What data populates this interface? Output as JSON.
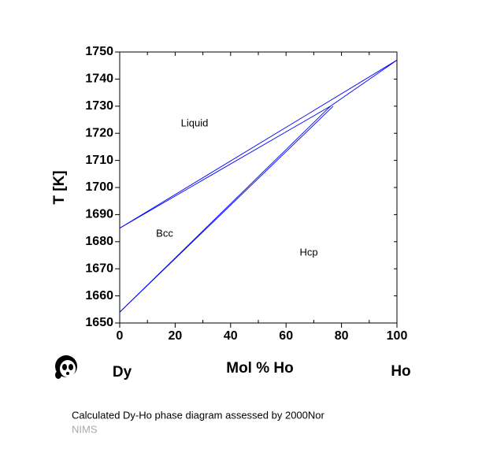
{
  "chart_data": {
    "type": "line",
    "y_label": "T [K]",
    "x_label": "Mol % Ho",
    "left_element": "Dy",
    "right_element": "Ho",
    "annotations": [
      "Liquid",
      "Bcc",
      "Hcp"
    ],
    "caption": "Calculated Dy-Ho phase diagram assessed by 2000Nor",
    "source": "NIMS",
    "xlim": [
      0,
      100
    ],
    "ylim": [
      1650,
      1750
    ],
    "xticks": [
      0,
      20,
      40,
      60,
      80,
      100
    ],
    "yticks": [
      1650,
      1660,
      1670,
      1680,
      1690,
      1700,
      1710,
      1720,
      1730,
      1740,
      1750
    ],
    "series": [
      {
        "color": "#0000ff",
        "x": [
          0,
          100
        ],
        "values": [
          1685,
          1747
        ]
      },
      {
        "color": "#0000ff",
        "x": [
          0,
          76,
          100
        ],
        "values": [
          1685,
          1730,
          1747
        ]
      },
      {
        "color": "#0000ff",
        "x": [
          0,
          76
        ],
        "values": [
          1654,
          1730
        ]
      },
      {
        "color": "#0000ff",
        "x": [
          0,
          77
        ],
        "values": [
          1654,
          1730
        ]
      }
    ]
  }
}
